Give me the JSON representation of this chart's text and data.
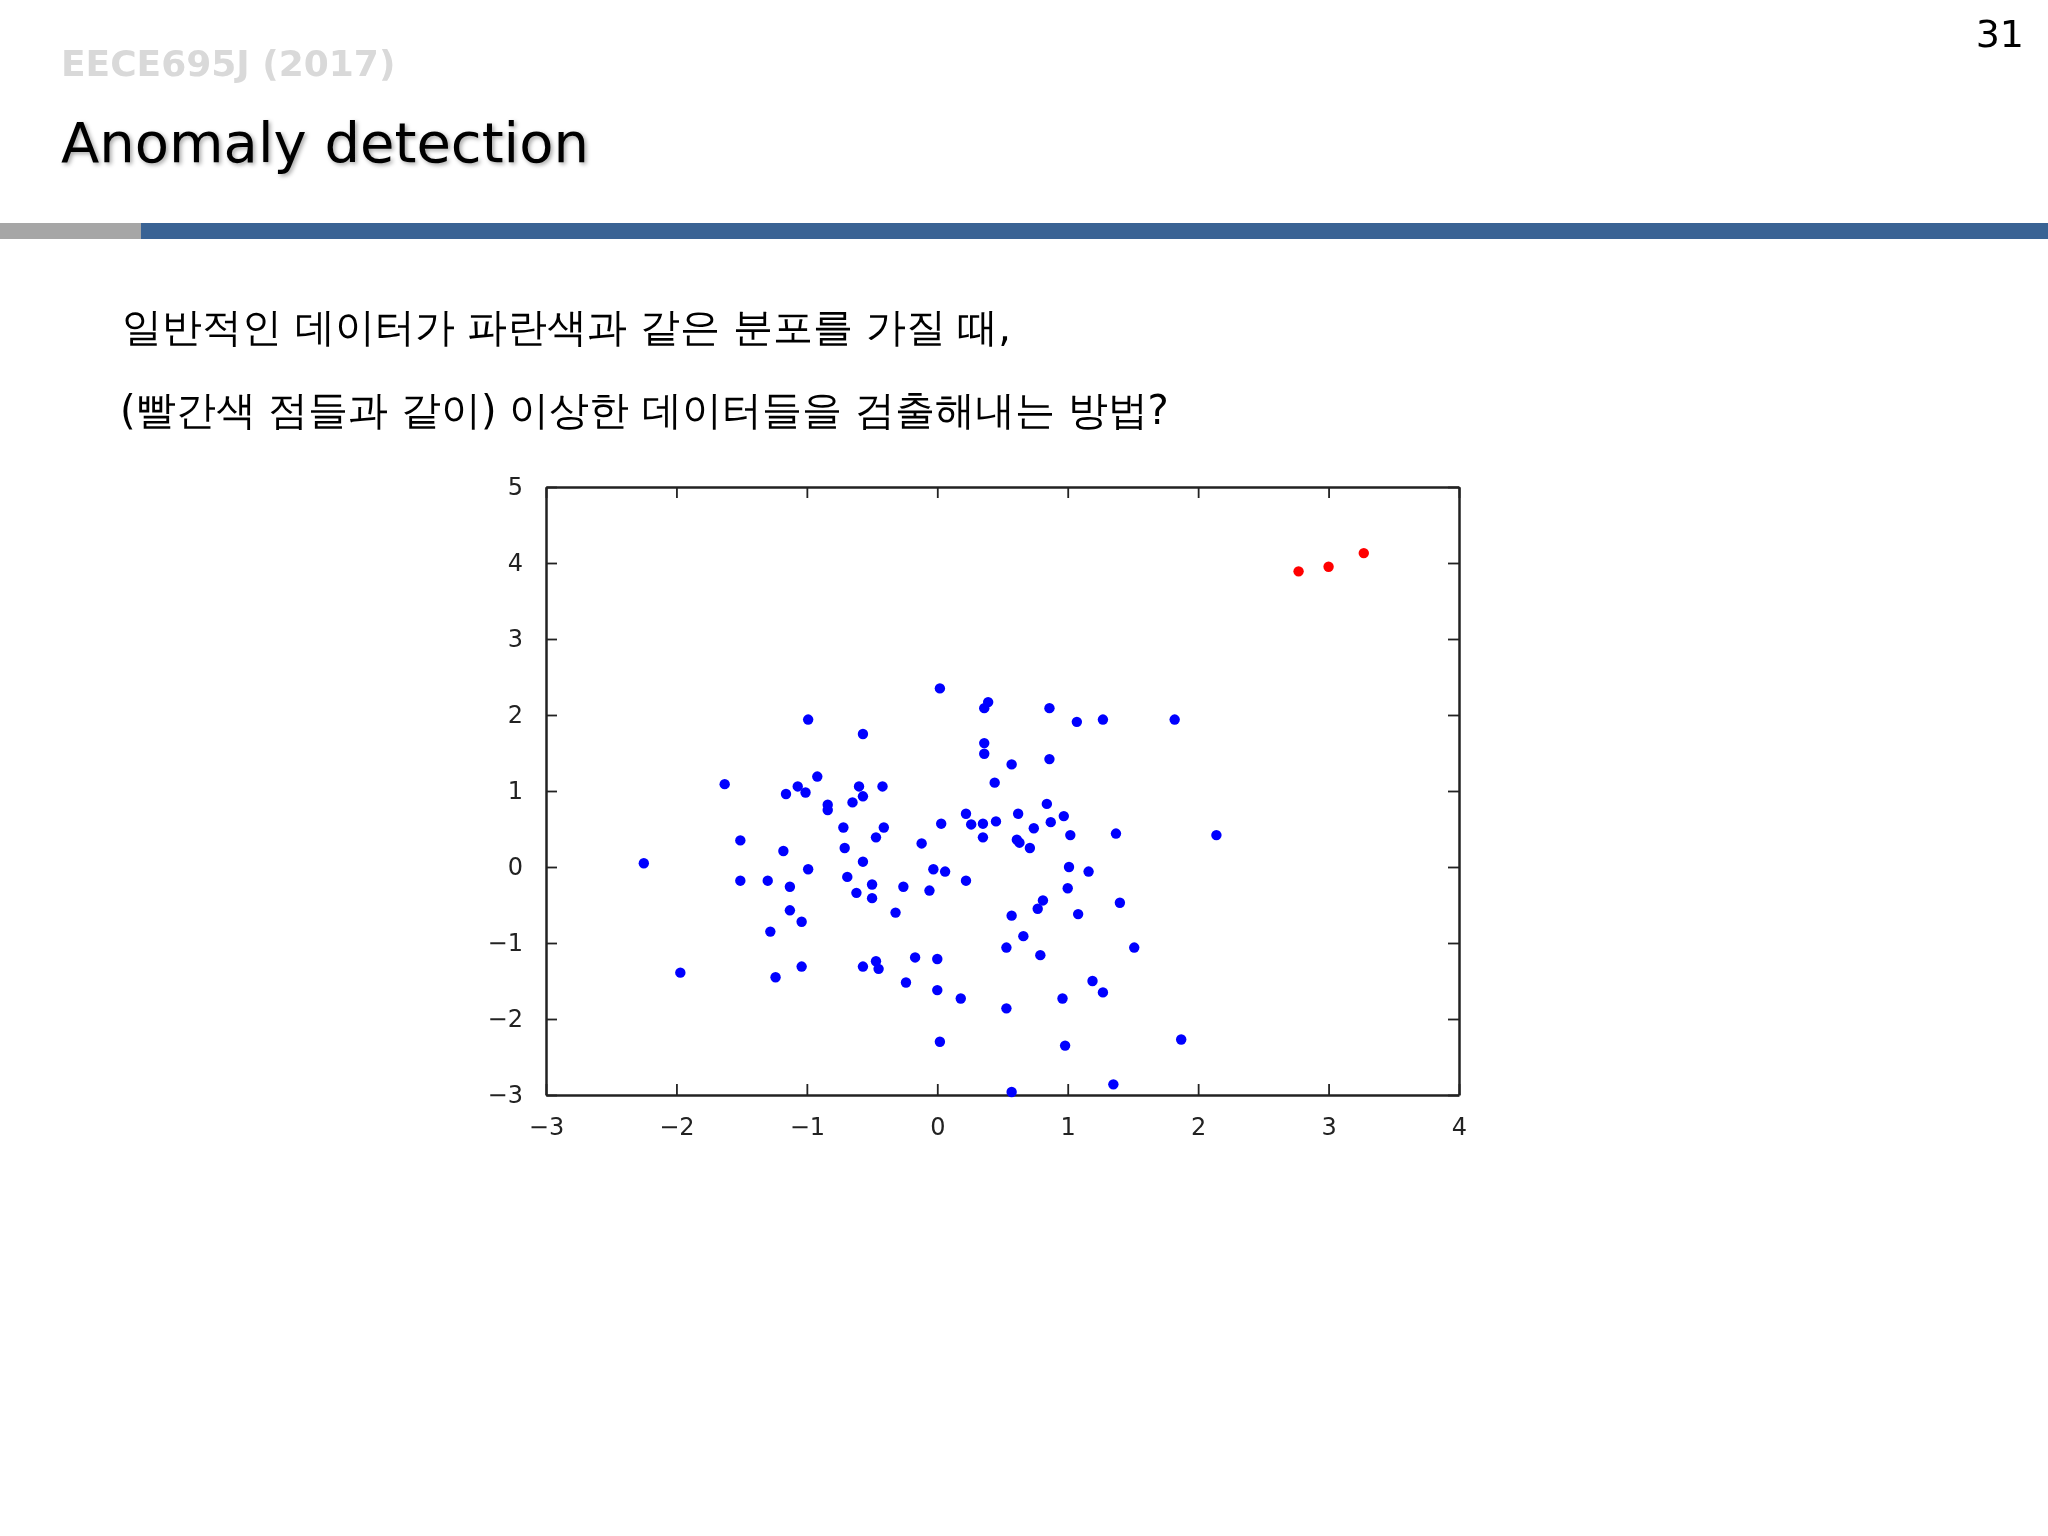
{
  "chart_data": {
    "type": "scatter",
    "title": "Anomaly detection",
    "annotations": [
      "EECE695J (2017)",
      "31",
      "일반적인 데이터가 파란색과 같은 분포를 가질 때,",
      "(빨간색 점들과 같이) 이상한 데이터들을 검출해내는 방법?"
    ],
    "xlim": [
      -3,
      4
    ],
    "xticks": [
      -3,
      -2,
      -1,
      0,
      1,
      2,
      3,
      4
    ],
    "ylim": [
      -3,
      5
    ],
    "yticks": [
      -3,
      -2,
      -1,
      0,
      1,
      2,
      3,
      4,
      5
    ],
    "grid": false,
    "marker": "circle",
    "series": [
      {
        "color": "#0000ff",
        "x": [
          -2.25,
          -1.97,
          -1.63,
          -1.51,
          -1.51,
          -1.3,
          -1.28,
          -1.24,
          -1.18,
          -1.16,
          -1.13,
          -1.13,
          -1.07,
          -1.04,
          -1.04,
          -1.01,
          -0.99,
          -0.99,
          -0.92,
          -0.84,
          -0.84,
          -0.72,
          -0.71,
          -0.69,
          -0.65,
          -0.62,
          -0.6,
          -0.57,
          -0.57,
          -0.57,
          -0.57,
          -0.5,
          -0.5,
          -0.47,
          -0.47,
          -0.45,
          -0.42,
          -0.41,
          -0.32,
          -0.26,
          -0.24,
          -0.17,
          -0.12,
          -0.06,
          -0.03,
          0.0,
          0.0,
          0.02,
          0.02,
          0.03,
          0.06,
          0.18,
          0.22,
          0.22,
          0.26,
          0.35,
          0.35,
          0.36,
          0.39,
          0.36,
          0.36,
          0.44,
          0.45,
          0.53,
          0.53,
          0.57,
          0.57,
          0.57,
          0.62,
          0.61,
          0.63,
          0.66,
          0.71,
          0.74,
          0.77,
          0.79,
          0.81,
          0.84,
          0.86,
          0.86,
          0.87,
          0.96,
          0.97,
          0.98,
          1.0,
          1.01,
          1.02,
          1.07,
          1.08,
          1.16,
          1.19,
          1.27,
          1.27,
          1.35,
          1.37,
          1.4,
          1.51,
          1.82,
          1.87,
          2.14
        ],
        "values": [
          0.05,
          -1.39,
          1.09,
          0.35,
          -0.18,
          -0.18,
          -0.85,
          -1.45,
          0.21,
          0.96,
          -0.26,
          -0.57,
          1.06,
          -0.72,
          -1.31,
          0.98,
          1.94,
          -0.03,
          1.19,
          0.82,
          0.75,
          0.52,
          0.25,
          -0.13,
          0.85,
          -0.34,
          1.06,
          1.75,
          0.93,
          0.07,
          -1.31,
          -0.23,
          -0.41,
          0.39,
          -1.24,
          -1.34,
          1.06,
          0.52,
          -0.6,
          -0.26,
          -1.52,
          -1.19,
          0.31,
          -0.31,
          -0.03,
          -1.21,
          -1.62,
          2.35,
          -2.3,
          0.57,
          -0.06,
          -1.73,
          0.7,
          -0.18,
          0.56,
          0.57,
          0.39,
          2.09,
          2.17,
          1.63,
          1.49,
          1.11,
          0.6,
          -1.06,
          -1.86,
          1.35,
          -0.64,
          -2.96,
          0.7,
          0.36,
          0.32,
          -0.91,
          0.25,
          0.51,
          -0.55,
          -1.16,
          -0.44,
          0.83,
          2.09,
          1.42,
          0.59,
          -1.73,
          0.67,
          -2.35,
          -0.28,
          0.0,
          0.42,
          1.91,
          -0.62,
          -0.06,
          -1.5,
          1.94,
          -1.65,
          -2.86,
          0.44,
          -0.47,
          -1.06,
          1.94,
          -2.27,
          0.42
        ]
      },
      {
        "color": "#ff0000",
        "x": [
          2.77,
          3.0,
          3.27
        ],
        "values": [
          3.89,
          3.95,
          4.13
        ]
      }
    ]
  }
}
